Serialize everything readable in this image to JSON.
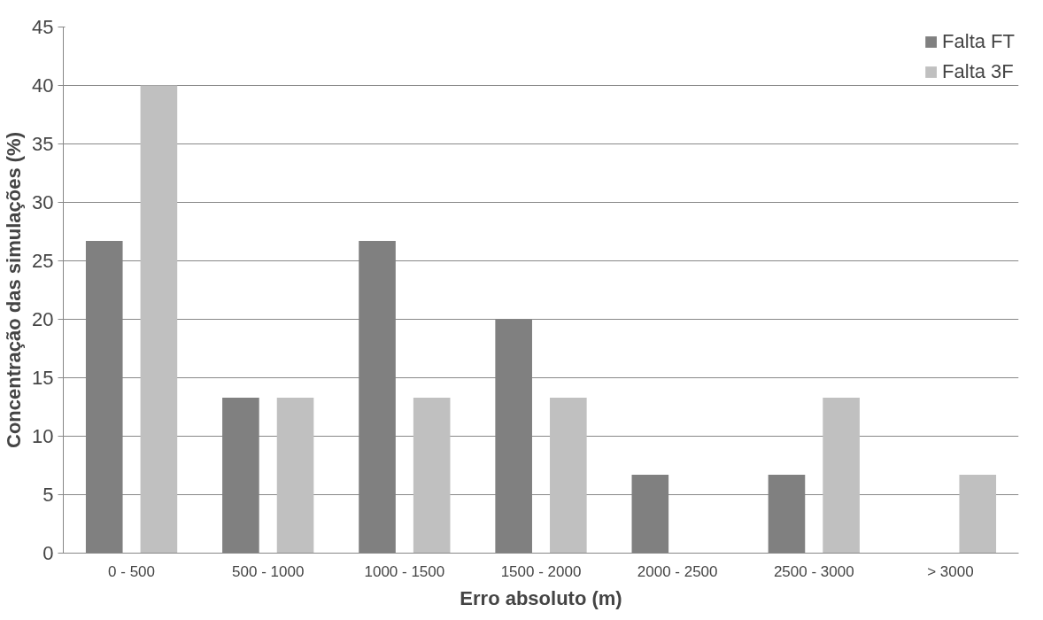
{
  "chart_data": {
    "type": "bar",
    "xlabel": "Erro absoluto (m)",
    "ylabel": "Concentração das simulações (%)",
    "categories": [
      "0 - 500",
      "500 - 1000",
      "1000 - 1500",
      "1500 - 2000",
      "2000 - 2500",
      "2500 - 3000",
      "> 3000"
    ],
    "series": [
      {
        "name": "Falta FT",
        "color": "#808080",
        "values": [
          26.7,
          13.3,
          26.7,
          20,
          6.7,
          6.7,
          0
        ]
      },
      {
        "name": "Falta 3F",
        "color": "#c0c0c0",
        "values": [
          40,
          13.3,
          13.3,
          13.3,
          0,
          13.3,
          6.7
        ]
      }
    ],
    "ylim": [
      0,
      45
    ],
    "yticks": [
      0,
      5,
      10,
      15,
      20,
      25,
      30,
      35,
      40,
      45
    ],
    "grid": "y",
    "legend": "top right"
  }
}
